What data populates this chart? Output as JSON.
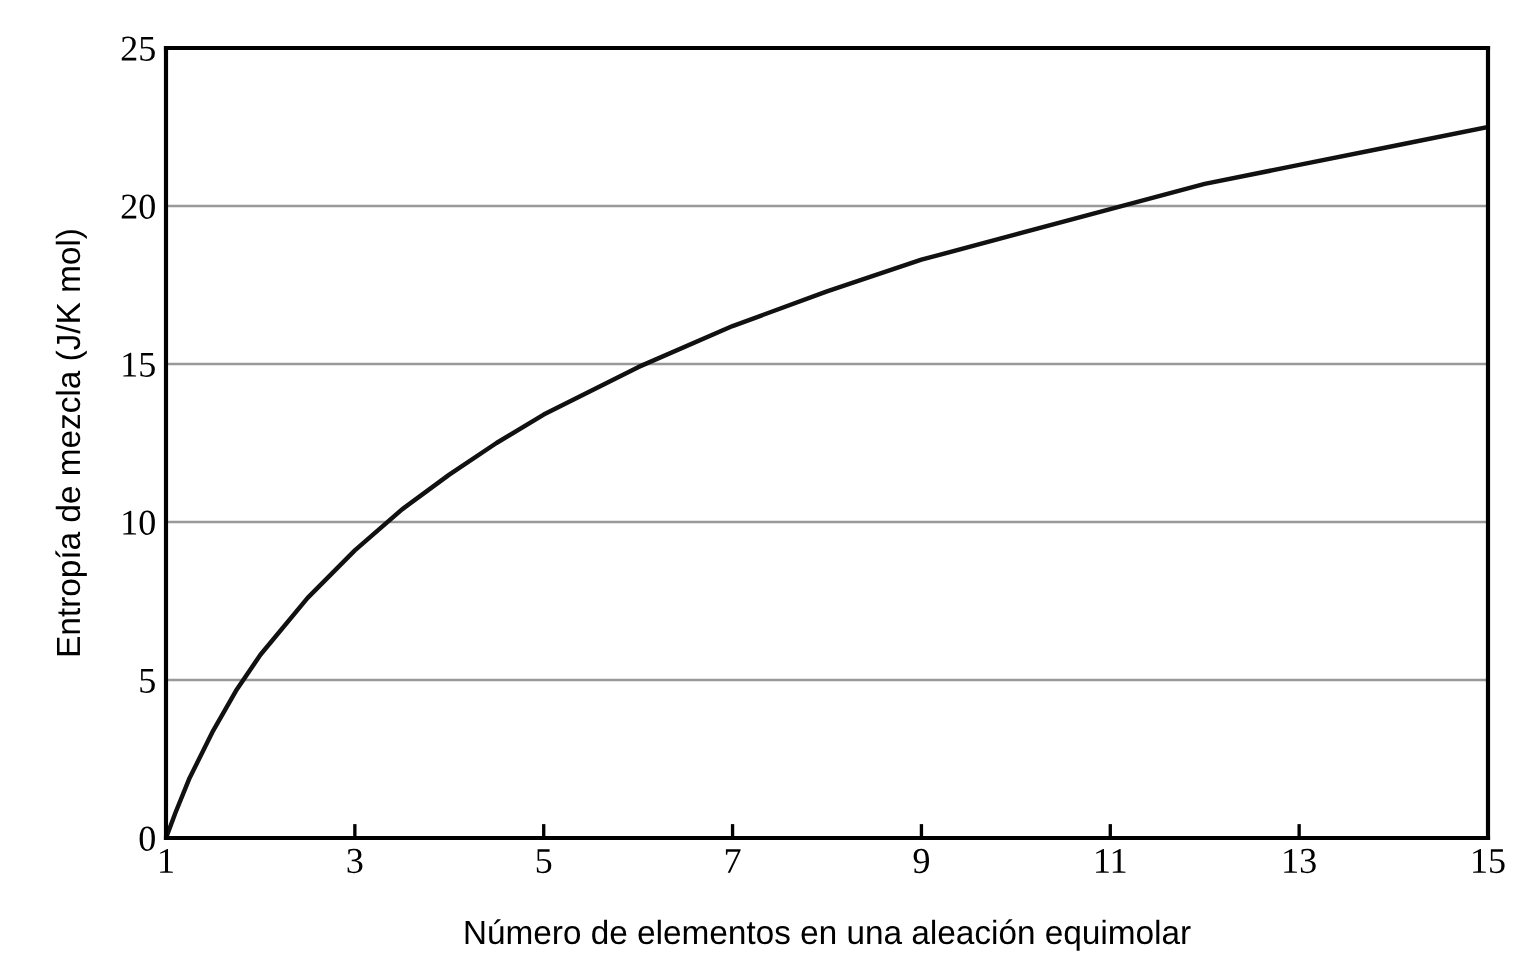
{
  "chart_data": {
    "type": "line",
    "xlabel": "Número de elementos en una aleación equimolar",
    "ylabel": "Entropía de mezcla (J/K mol)",
    "x": [
      1,
      1.1,
      1.25,
      1.5,
      1.75,
      2,
      2.5,
      3,
      3.5,
      4,
      4.5,
      5,
      6,
      7,
      8,
      9,
      10,
      11,
      12,
      13,
      14,
      15
    ],
    "series": [
      {
        "color": "#111111",
        "values": [
          0,
          0.8,
          1.9,
          3.4,
          4.7,
          5.8,
          7.6,
          9.1,
          10.4,
          11.5,
          12.5,
          13.4,
          14.9,
          16.2,
          17.3,
          18.3,
          19.1,
          19.9,
          20.7,
          21.3,
          21.9,
          22.5
        ]
      }
    ],
    "xlim": [
      1,
      15
    ],
    "xticks": [
      1,
      3,
      5,
      7,
      9,
      11,
      13,
      15
    ],
    "ylim": [
      0,
      25
    ],
    "yticks": [
      0,
      5,
      10,
      15,
      20,
      25
    ],
    "grid": "y",
    "marker": "none",
    "line_style": "solid"
  }
}
